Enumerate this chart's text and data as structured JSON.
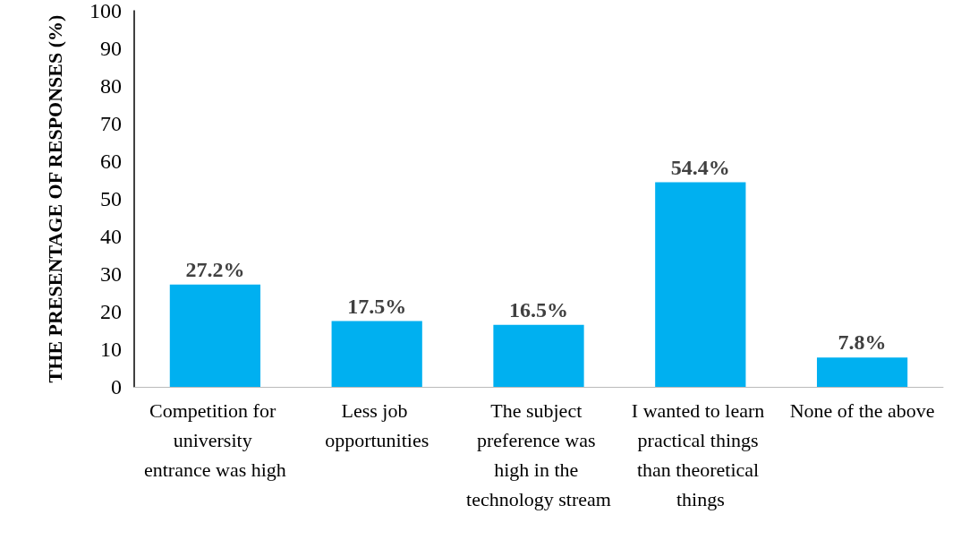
{
  "chart_data": {
    "type": "bar",
    "categories": [
      "Competition for university entrance was high",
      "Less job opportunities",
      "The subject preference was high in the technology stream",
      "I wanted to learn practical things than theoretical things",
      "None of the above"
    ],
    "values": [
      27.2,
      17.5,
      16.5,
      54.4,
      7.8
    ],
    "value_labels": [
      "27.2%",
      "17.5%",
      "16.5%",
      "54.4%",
      "7.8%"
    ],
    "color": "#00b0f0",
    "ylabel": "THE PRESENTAGE OF RESPONSES (%)",
    "ylim": [
      0,
      100
    ],
    "yticks": [
      0,
      10,
      20,
      30,
      40,
      50,
      60,
      70,
      80,
      90,
      100
    ],
    "grid": false
  }
}
